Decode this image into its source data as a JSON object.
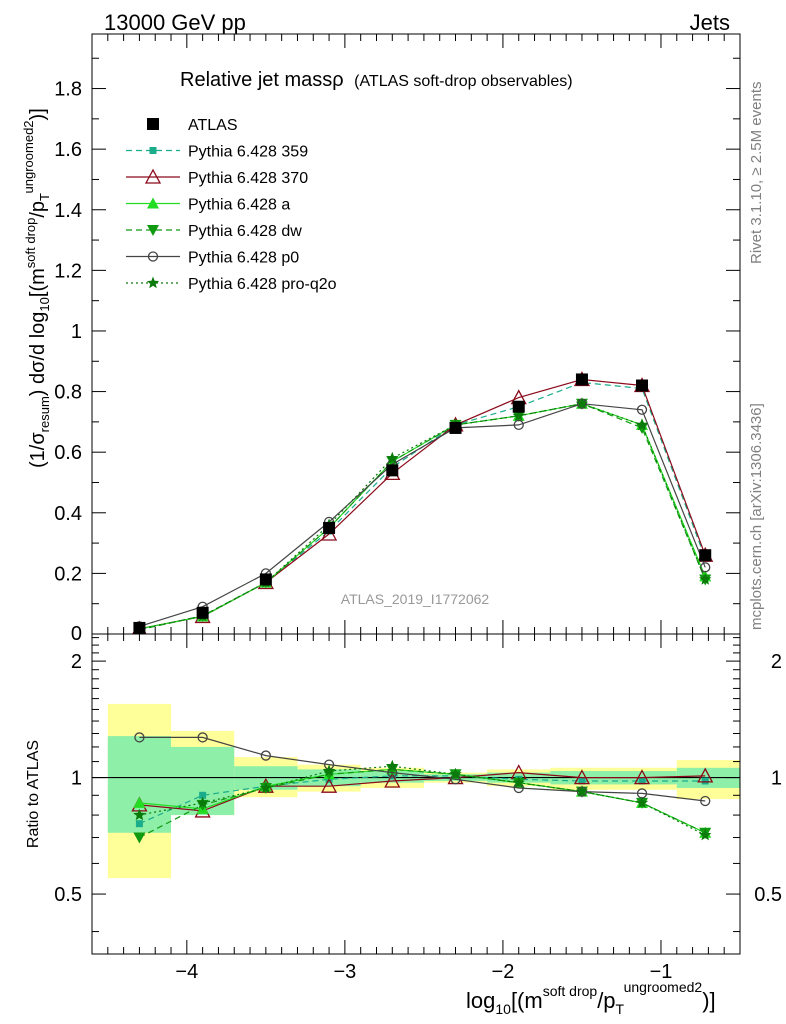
{
  "header": {
    "left": "13000 GeV pp",
    "right": "Jets"
  },
  "side_labels": {
    "rivet": "Rivet 3.1.10, ≥ 2.5M events",
    "mcplots": "mcplots.cern.ch [arXiv:1306.3436]"
  },
  "watermark": "ATLAS_2019_I1772062",
  "chart_data": [
    {
      "type": "line",
      "panel": "main",
      "title": "Relative jet massρ",
      "subtitle": "(ATLAS soft-drop observables)",
      "ylabel": "(1/σresum) dσ/d log10[(m soft drop / pT ungroomed)2]",
      "xlim": [
        -4.6,
        -0.5
      ],
      "ylim": [
        0,
        1.98
      ],
      "yticks": [
        0,
        0.2,
        0.4,
        0.6,
        0.8,
        1,
        1.2,
        1.4,
        1.6,
        1.8
      ],
      "ytick_labels": [
        "0",
        "0.2",
        "0.4",
        "0.6",
        "0.8",
        "1",
        "1.2",
        "1.4",
        "1.6",
        "1.8"
      ],
      "bin_edges": [
        -4.5,
        -4.1,
        -3.7,
        -3.3,
        -2.9,
        -2.5,
        -2.1,
        -1.7,
        -1.3,
        -0.9,
        -0.5
      ],
      "x": [
        -4.3,
        -3.9,
        -3.5,
        -3.1,
        -2.7,
        -2.3,
        -1.9,
        -1.5,
        -1.12,
        -0.72
      ],
      "legend_position": "top-left",
      "series": [
        {
          "name": "ATLAS",
          "marker": "square",
          "values": [
            0.02,
            0.07,
            0.18,
            0.35,
            0.54,
            0.68,
            0.75,
            0.84,
            0.82,
            0.26
          ]
        },
        {
          "name": "Pythia 6.428 359",
          "marker": "small-square",
          "values": [
            0.015,
            0.06,
            0.17,
            0.34,
            0.55,
            0.69,
            0.75,
            0.83,
            0.81,
            0.25
          ]
        },
        {
          "name": "Pythia 6.428 370",
          "marker": "open-triangle",
          "values": [
            0.017,
            0.058,
            0.17,
            0.33,
            0.53,
            0.69,
            0.78,
            0.84,
            0.82,
            0.26
          ]
        },
        {
          "name": "Pythia 6.428 a",
          "marker": "triangle",
          "values": [
            0.017,
            0.058,
            0.17,
            0.35,
            0.57,
            0.69,
            0.72,
            0.76,
            0.69,
            0.19
          ]
        },
        {
          "name": "Pythia 6.428 dw",
          "marker": "triangle-down",
          "values": [
            0.014,
            0.06,
            0.17,
            0.35,
            0.57,
            0.69,
            0.72,
            0.76,
            0.68,
            0.18
          ]
        },
        {
          "name": "Pythia 6.428 p0",
          "marker": "open-circle",
          "values": [
            0.025,
            0.09,
            0.2,
            0.37,
            0.56,
            0.68,
            0.69,
            0.76,
            0.74,
            0.22
          ]
        },
        {
          "name": "Pythia 6.428 pro-q2o",
          "marker": "star",
          "values": [
            0.016,
            0.059,
            0.17,
            0.36,
            0.58,
            0.69,
            0.72,
            0.76,
            0.69,
            0.18
          ]
        }
      ]
    },
    {
      "type": "line",
      "panel": "ratio",
      "ylabel": "Ratio to ATLAS",
      "xlabel": "log10[(m soft drop / pT ungroomed)2]",
      "xlim": [
        -4.6,
        -0.5
      ],
      "ylim": [
        0.35,
        2.35
      ],
      "yticks": [
        0.5,
        1,
        2
      ],
      "ytick_labels": [
        "0.5",
        "1",
        "2"
      ],
      "xticks": [
        -4,
        -3,
        -2,
        -1
      ],
      "xtick_labels": [
        "−4",
        "−3",
        "−2",
        "−1"
      ],
      "bands": {
        "bin_edges": [
          -4.5,
          -4.1,
          -3.7,
          -3.3,
          -2.9,
          -2.5,
          -2.1,
          -1.7,
          -1.3,
          -0.9,
          -0.5
        ],
        "inner_lo": [
          0.72,
          0.8,
          0.93,
          0.95,
          0.97,
          0.98,
          0.97,
          0.96,
          0.96,
          0.94
        ],
        "inner_hi": [
          1.28,
          1.2,
          1.07,
          1.05,
          1.04,
          1.02,
          1.03,
          1.04,
          1.04,
          1.06
        ],
        "outer_lo": [
          0.55,
          0.8,
          0.89,
          0.92,
          0.94,
          0.97,
          0.95,
          0.93,
          0.93,
          0.88
        ],
        "outer_hi": [
          1.55,
          1.32,
          1.13,
          1.08,
          1.06,
          1.03,
          1.05,
          1.06,
          1.06,
          1.11
        ]
      },
      "series": [
        {
          "name": "Pythia 6.428 359",
          "values": [
            0.76,
            0.9,
            0.95,
            0.99,
            1.01,
            1.01,
            0.99,
            0.98,
            0.98,
            0.98
          ]
        },
        {
          "name": "Pythia 6.428 370",
          "values": [
            0.85,
            0.82,
            0.95,
            0.95,
            0.98,
            1.0,
            1.03,
            1.0,
            1.0,
            1.01
          ]
        },
        {
          "name": "Pythia 6.428 a",
          "values": [
            0.86,
            0.83,
            0.95,
            1.02,
            1.05,
            1.02,
            0.97,
            0.92,
            0.86,
            0.72
          ]
        },
        {
          "name": "Pythia 6.428 dw",
          "values": [
            0.7,
            0.85,
            0.94,
            1.02,
            1.05,
            1.02,
            0.97,
            0.92,
            0.86,
            0.72
          ]
        },
        {
          "name": "Pythia 6.428 p0",
          "values": [
            1.27,
            1.27,
            1.14,
            1.08,
            1.03,
            0.99,
            0.94,
            0.92,
            0.91,
            0.87
          ]
        },
        {
          "name": "Pythia 6.428 pro-q2o",
          "values": [
            0.8,
            0.86,
            0.94,
            1.04,
            1.07,
            1.02,
            0.97,
            0.92,
            0.86,
            0.71
          ]
        }
      ]
    }
  ],
  "colors": {
    "ATLAS": "#000000",
    "Pythia 6.428 359": "#1aad8c",
    "Pythia 6.428 370": "#8b0a1a",
    "Pythia 6.428 a": "#22dd22",
    "Pythia 6.428 dw": "#109a10",
    "Pythia 6.428 p0": "#444444",
    "Pythia 6.428 pro-q2o": "#0a7a0a",
    "band_inner": "#8ef0a8",
    "band_outer": "#ffff99"
  }
}
